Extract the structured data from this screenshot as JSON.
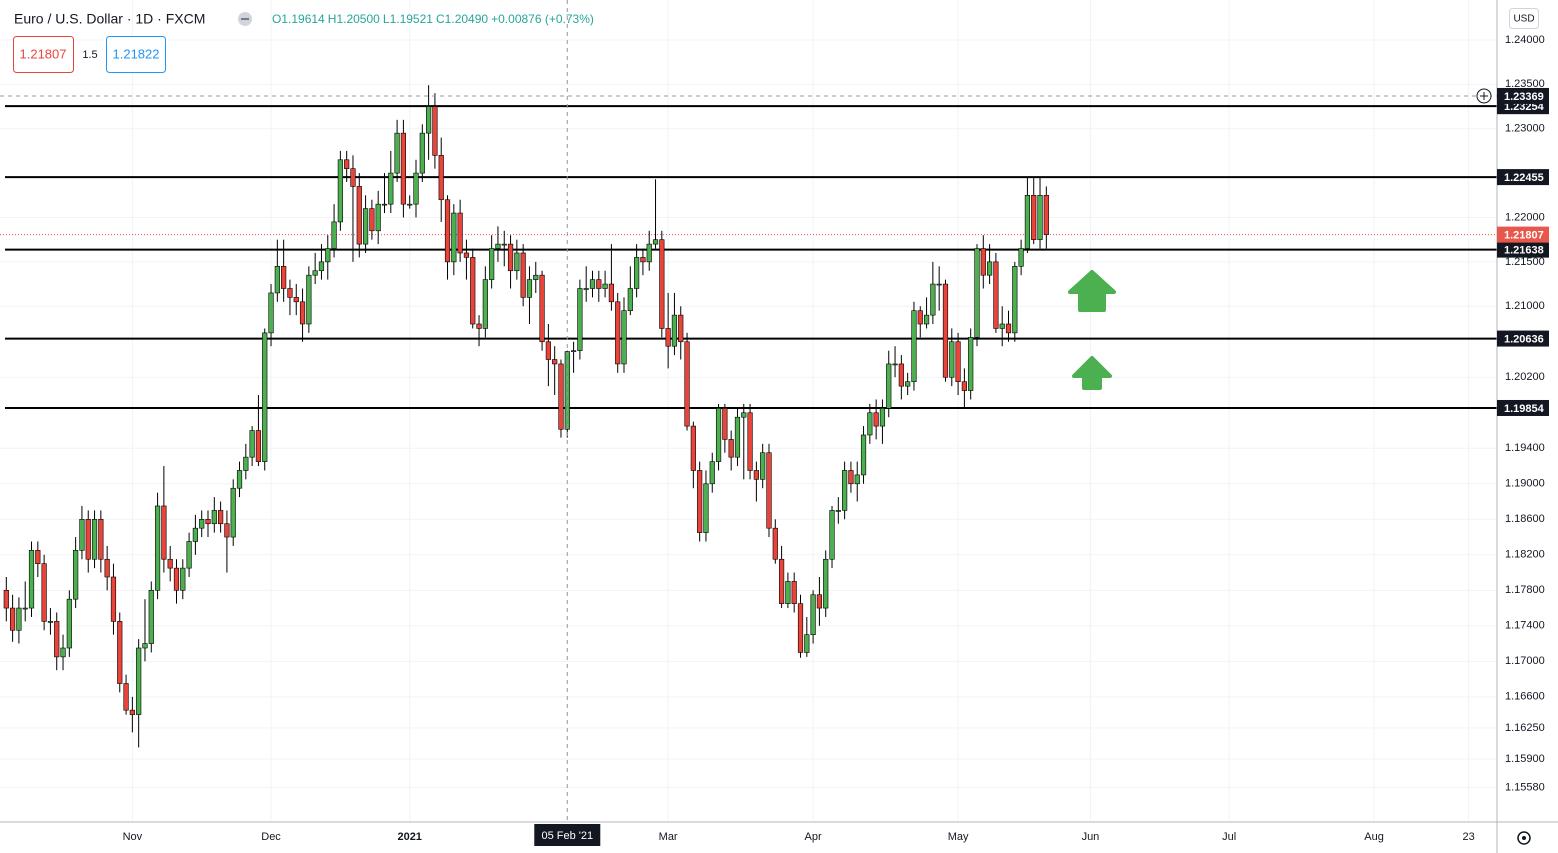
{
  "chart_data": {
    "type": "candlestick",
    "title": "Euro / U.S. Dollar · 1D · FXCM",
    "ohlc_readout": [
      "O1.19614",
      "H1.20500",
      "L1.19521",
      "C1.20490",
      "+0.00876 (+0.73%)"
    ],
    "trade": {
      "sell": "1.21807",
      "spread": "1.5",
      "buy": "1.21822"
    },
    "currency": "USD",
    "up_color": "#4caf50",
    "down_color": "#e8443a",
    "level_color": "#000000",
    "last_price_color": "#e8574c",
    "grid": true,
    "xlim": [
      -1,
      236.5
    ],
    "ylim": [
      1.1519,
      1.2445
    ],
    "xticks": [
      {
        "value": 20,
        "label": "Nov"
      },
      {
        "value": 42,
        "label": "Dec"
      },
      {
        "value": 64,
        "label": "2021"
      },
      {
        "value": 105,
        "label": "Mar"
      },
      {
        "value": 128,
        "label": "Apr"
      },
      {
        "value": 151,
        "label": "May"
      },
      {
        "value": 172,
        "label": "Jun"
      },
      {
        "value": 194,
        "label": "Jul"
      },
      {
        "value": 217,
        "label": "Aug"
      },
      {
        "value": 232,
        "label": "23"
      }
    ],
    "yticks": [
      {
        "value": 1.24,
        "label": "1.24000"
      },
      {
        "value": 1.235,
        "label": "1.23500"
      },
      {
        "value": 1.23,
        "label": "1.23000"
      },
      {
        "value": 1.22,
        "label": "1.22000"
      },
      {
        "value": 1.215,
        "label": "1.21500"
      },
      {
        "value": 1.21,
        "label": "1.21000"
      },
      {
        "value": 1.202,
        "label": "1.20200"
      },
      {
        "value": 1.194,
        "label": "1.19400"
      },
      {
        "value": 1.19,
        "label": "1.19000"
      },
      {
        "value": 1.186,
        "label": "1.18600"
      },
      {
        "value": 1.182,
        "label": "1.18200"
      },
      {
        "value": 1.178,
        "label": "1.17800"
      },
      {
        "value": 1.174,
        "label": "1.17400"
      },
      {
        "value": 1.17,
        "label": "1.17000"
      },
      {
        "value": 1.166,
        "label": "1.16600"
      },
      {
        "value": 1.1625,
        "label": "1.16250"
      },
      {
        "value": 1.159,
        "label": "1.15900"
      },
      {
        "value": 1.1558,
        "label": "1.15580"
      }
    ],
    "levels": [
      1.23254,
      1.22455,
      1.21638,
      1.20636,
      1.19854
    ],
    "last_price": 1.21807,
    "crosshair": {
      "x": 89,
      "label": "05 Feb '21",
      "price": 1.23369
    },
    "open": [
      1.178,
      1.176,
      1.1735,
      1.176,
      1.176,
      1.1825,
      1.181,
      1.1745,
      1.1745,
      1.1705,
      1.1715,
      1.177,
      1.1825,
      1.186,
      1.1815,
      1.186,
      1.1815,
      1.1795,
      1.1745,
      1.1675,
      1.1645,
      1.164,
      1.1715,
      1.172,
      1.178,
      1.1875,
      1.1815,
      1.1805,
      1.178,
      1.1805,
      1.1835,
      1.185,
      1.186,
      1.1855,
      1.187,
      1.1855,
      1.184,
      1.1895,
      1.1915,
      1.193,
      1.196,
      1.1925,
      1.207,
      1.2115,
      1.2145,
      1.212,
      1.211,
      1.2105,
      1.208,
      1.2135,
      1.214,
      1.215,
      1.2165,
      1.2195,
      1.2265,
      1.2255,
      1.2235,
      1.217,
      1.221,
      1.2185,
      1.2215,
      1.2215,
      1.225,
      1.2295,
      1.2215,
      1.2215,
      1.225,
      1.2295,
      1.2325,
      1.227,
      1.222,
      1.215,
      1.2205,
      1.216,
      1.2155,
      1.208,
      1.2075,
      1.213,
      1.2165,
      1.217,
      1.217,
      1.214,
      1.216,
      1.211,
      1.213,
      1.2135,
      1.206,
      1.204,
      1.2035,
      1.19614,
      1.2049,
      1.205,
      1.212,
      1.212,
      1.213,
      1.212,
      1.2125,
      1.2105,
      1.2035,
      1.2095,
      1.212,
      1.2155,
      1.215,
      1.217,
      1.2175,
      1.2075,
      1.2055,
      1.209,
      1.206,
      1.1965,
      1.1915,
      1.1845,
      1.19,
      1.1925,
      1.1985,
      1.195,
      1.193,
      1.1975,
      1.198,
      1.1915,
      1.1905,
      1.1935,
      1.185,
      1.1815,
      1.1765,
      1.179,
      1.1765,
      1.171,
      1.173,
      1.1775,
      1.176,
      1.1815,
      1.187,
      1.187,
      1.1915,
      1.19,
      1.191,
      1.1955,
      1.198,
      1.1965,
      1.1985,
      1.2035,
      1.2035,
      1.201,
      1.2015,
      1.2095,
      1.208,
      1.209,
      1.2125,
      1.2125,
      1.202,
      1.206,
      1.2015,
      1.2005,
      1.2065,
      1.2165,
      1.2135,
      1.215,
      1.2075,
      1.208,
      1.207,
      1.2145,
      1.2165,
      1.2225,
      1.2175,
      1.2225
    ],
    "high": [
      1.1795,
      1.1775,
      1.1772,
      1.179,
      1.1835,
      1.1835,
      1.182,
      1.176,
      1.1755,
      1.173,
      1.178,
      1.184,
      1.1875,
      1.187,
      1.187,
      1.187,
      1.183,
      1.181,
      1.1755,
      1.1685,
      1.166,
      1.1725,
      1.177,
      1.179,
      1.189,
      1.192,
      1.183,
      1.1815,
      1.1815,
      1.1845,
      1.1865,
      1.187,
      1.187,
      1.1885,
      1.188,
      1.187,
      1.1905,
      1.1925,
      1.1945,
      1.1965,
      1.2,
      1.2075,
      1.2125,
      1.2175,
      1.2175,
      1.213,
      1.2125,
      1.212,
      1.2145,
      1.216,
      1.217,
      1.218,
      1.2215,
      1.2275,
      1.2275,
      1.227,
      1.225,
      1.2225,
      1.222,
      1.223,
      1.225,
      1.2275,
      1.231,
      1.231,
      1.2225,
      1.2265,
      1.2305,
      1.2349,
      1.234,
      1.229,
      1.2225,
      1.2215,
      1.222,
      1.2175,
      1.2165,
      1.209,
      1.2145,
      1.218,
      1.219,
      1.2185,
      1.218,
      1.2175,
      1.217,
      1.2145,
      1.215,
      1.214,
      1.208,
      1.2055,
      1.204,
      1.205,
      1.206,
      1.213,
      1.2145,
      1.214,
      1.214,
      1.214,
      1.217,
      1.2115,
      1.211,
      1.2145,
      1.217,
      1.2165,
      1.2185,
      1.2243,
      1.2185,
      1.2115,
      1.2115,
      1.21,
      1.207,
      1.197,
      1.1925,
      1.1915,
      1.1935,
      1.199,
      1.199,
      1.196,
      1.1985,
      1.199,
      1.199,
      1.1925,
      1.1945,
      1.1945,
      1.186,
      1.183,
      1.18,
      1.18,
      1.1775,
      1.175,
      1.178,
      1.1795,
      1.1825,
      1.1875,
      1.1885,
      1.1925,
      1.1925,
      1.1925,
      1.1965,
      1.199,
      1.1995,
      1.1995,
      1.205,
      1.2055,
      1.2045,
      1.2025,
      1.2105,
      1.21,
      1.211,
      1.215,
      1.2145,
      1.213,
      1.2075,
      1.207,
      1.203,
      1.2075,
      1.217,
      1.218,
      1.217,
      1.216,
      1.21,
      1.2095,
      1.215,
      1.2175,
      1.2245,
      1.2245,
      1.2245,
      1.2235
    ],
    "low": [
      1.1745,
      1.1722,
      1.172,
      1.1745,
      1.175,
      1.1795,
      1.1735,
      1.173,
      1.169,
      1.169,
      1.1705,
      1.176,
      1.1815,
      1.18,
      1.1805,
      1.18,
      1.178,
      1.173,
      1.1665,
      1.164,
      1.162,
      1.1603,
      1.17,
      1.171,
      1.177,
      1.18,
      1.179,
      1.1765,
      1.177,
      1.1795,
      1.182,
      1.184,
      1.184,
      1.1845,
      1.1845,
      1.18,
      1.183,
      1.1885,
      1.1905,
      1.192,
      1.192,
      1.1915,
      1.2055,
      1.2105,
      1.2105,
      1.209,
      1.209,
      1.206,
      1.207,
      1.2125,
      1.213,
      1.213,
      1.2155,
      1.2185,
      1.224,
      1.215,
      1.2155,
      1.216,
      1.2175,
      1.217,
      1.2205,
      1.2205,
      1.224,
      1.22,
      1.221,
      1.22,
      1.224,
      1.2265,
      1.2255,
      1.2195,
      1.213,
      1.2135,
      1.215,
      1.213,
      1.2075,
      1.2055,
      1.2065,
      1.212,
      1.215,
      1.2145,
      1.212,
      1.213,
      1.21,
      1.208,
      1.2115,
      1.205,
      1.201,
      1.2,
      1.1952,
      1.19521,
      1.2025,
      1.204,
      1.2105,
      1.211,
      1.2105,
      1.211,
      1.2095,
      1.2025,
      1.2025,
      1.209,
      1.211,
      1.2135,
      1.214,
      1.2165,
      1.2065,
      1.203,
      1.2045,
      1.204,
      1.196,
      1.1895,
      1.1835,
      1.1835,
      1.189,
      1.1915,
      1.1935,
      1.1915,
      1.192,
      1.1905,
      1.1905,
      1.188,
      1.1895,
      1.184,
      1.181,
      1.176,
      1.176,
      1.1755,
      1.1704,
      1.1705,
      1.172,
      1.174,
      1.175,
      1.1805,
      1.1855,
      1.186,
      1.189,
      1.188,
      1.19,
      1.1945,
      1.195,
      1.1945,
      1.1975,
      1.202,
      1.1995,
      1.2,
      1.2005,
      1.2065,
      1.2075,
      1.208,
      1.2095,
      1.2015,
      1.201,
      1.2,
      1.1985,
      1.1995,
      1.2055,
      1.212,
      1.2125,
      1.207,
      1.2055,
      1.206,
      1.206,
      1.2135,
      1.216,
      1.217,
      1.2165,
      1.2165
    ],
    "close": [
      1.176,
      1.1735,
      1.176,
      1.176,
      1.1825,
      1.181,
      1.1745,
      1.1745,
      1.1705,
      1.1715,
      1.177,
      1.1825,
      1.186,
      1.1815,
      1.186,
      1.1815,
      1.1795,
      1.1745,
      1.1675,
      1.1645,
      1.164,
      1.1715,
      1.172,
      1.178,
      1.1875,
      1.1815,
      1.1805,
      1.178,
      1.1805,
      1.1835,
      1.185,
      1.186,
      1.1855,
      1.187,
      1.1855,
      1.184,
      1.1895,
      1.1915,
      1.193,
      1.196,
      1.1925,
      1.207,
      1.2115,
      1.2145,
      1.212,
      1.211,
      1.2105,
      1.208,
      1.2135,
      1.214,
      1.215,
      1.2165,
      1.2195,
      1.2265,
      1.2255,
      1.2235,
      1.217,
      1.221,
      1.2185,
      1.2215,
      1.2215,
      1.225,
      1.2295,
      1.2215,
      1.2215,
      1.225,
      1.2295,
      1.2325,
      1.227,
      1.222,
      1.215,
      1.2205,
      1.216,
      1.2155,
      1.208,
      1.2075,
      1.213,
      1.2165,
      1.217,
      1.217,
      1.214,
      1.216,
      1.211,
      1.213,
      1.2135,
      1.206,
      1.204,
      1.2035,
      1.19614,
      1.2049,
      1.205,
      1.212,
      1.212,
      1.213,
      1.212,
      1.2125,
      1.2105,
      1.2035,
      1.2095,
      1.212,
      1.2155,
      1.215,
      1.217,
      1.2175,
      1.2075,
      1.2055,
      1.209,
      1.206,
      1.1965,
      1.1915,
      1.1845,
      1.19,
      1.1925,
      1.1985,
      1.195,
      1.193,
      1.1975,
      1.198,
      1.1915,
      1.1905,
      1.1935,
      1.185,
      1.1815,
      1.1765,
      1.179,
      1.1765,
      1.171,
      1.173,
      1.1775,
      1.176,
      1.1815,
      1.187,
      1.187,
      1.1915,
      1.19,
      1.191,
      1.1955,
      1.198,
      1.1965,
      1.1985,
      1.2035,
      1.2035,
      1.201,
      1.2015,
      1.2095,
      1.208,
      1.209,
      1.2125,
      1.2125,
      1.202,
      1.206,
      1.2015,
      1.2005,
      1.2065,
      1.2165,
      1.2135,
      1.215,
      1.2075,
      1.208,
      1.207,
      1.2145,
      1.2165,
      1.2225,
      1.2175,
      1.2225,
      1.21807
    ]
  }
}
